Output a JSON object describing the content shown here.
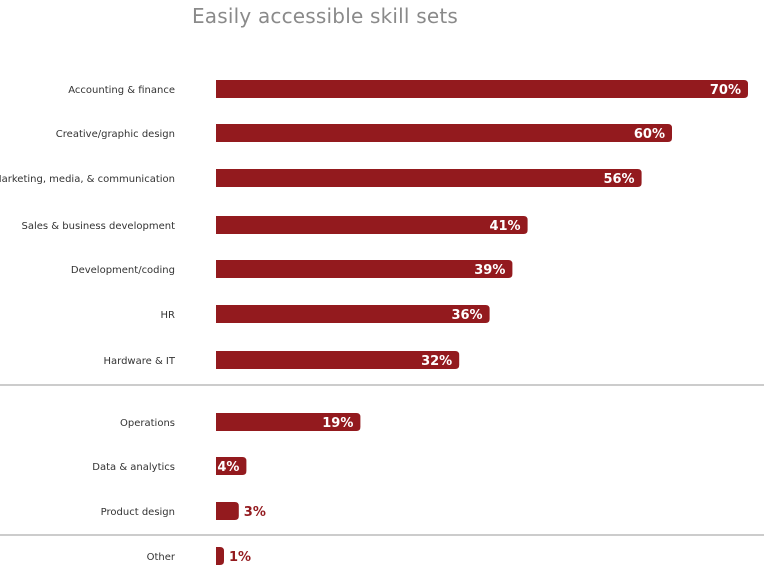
{
  "chart_data": {
    "type": "bar",
    "orientation": "horizontal",
    "title": "Easily accessible skill sets",
    "xlim": [
      0,
      70
    ],
    "grid": false,
    "bar_color": "#931a1e",
    "value_suffix": "%",
    "categories": [
      "Accounting & finance",
      "Creative/graphic design",
      "Marketing, media, & communication",
      "Sales & business development",
      "Development/coding",
      "HR",
      "Hardware & IT",
      "Operations",
      "Data & analytics",
      "Product design",
      "Other"
    ],
    "values": [
      70,
      60,
      56,
      41,
      39,
      36,
      32,
      19,
      4,
      3,
      1
    ],
    "value_labels": [
      "70%",
      "60%",
      "56%",
      "41%",
      "39%",
      "36%",
      "32%",
      "19%",
      "4%",
      "3%",
      "1%"
    ],
    "group_separators_after": [
      "Hardware & IT",
      "Product design"
    ]
  }
}
